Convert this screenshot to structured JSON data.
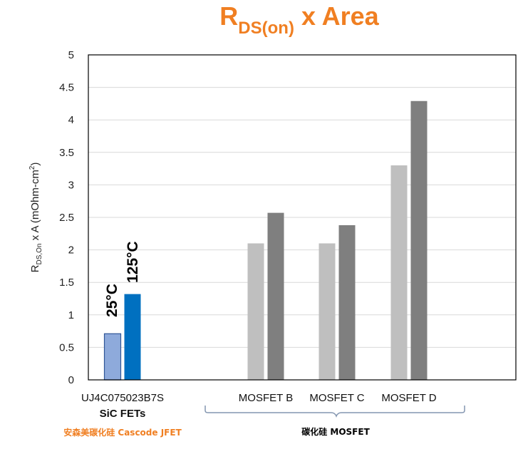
{
  "colors": {
    "title": "#f07f22",
    "sic_25": "#8eaadb",
    "sic_25_border": "#2f5597",
    "sic_125": "#0070c0",
    "mos_25": "#bfbfbf",
    "mos_125": "#7f7f7f",
    "annot_orange": "#f07f22",
    "grid": "#d9d9d9"
  },
  "chart_data": {
    "type": "bar",
    "title_main": "R",
    "title_sub": "DS(on)",
    "title_rest": " x Area",
    "ylabel_main": "R",
    "ylabel_sub": "DS,On",
    "ylabel_rest": " x A (mOhm-cm",
    "ylabel_sup": "2",
    "ylabel_end": ")",
    "ylim": [
      0,
      5
    ],
    "yticks": [
      "0",
      "0.5",
      "1",
      "1.5",
      "2",
      "2.5",
      "3",
      "3.5",
      "4",
      "4.5",
      "5"
    ],
    "grid": true,
    "categories": [
      "UJ4C075023B7S",
      "MOSFET B",
      "MOSFET C",
      "MOSFET D"
    ],
    "series": [
      {
        "values": [
          0.71,
          2.1,
          2.1,
          3.3
        ]
      },
      {
        "values": [
          1.32,
          2.57,
          2.38,
          4.29
        ]
      }
    ],
    "bar_labels": [
      "25°C",
      "125°C"
    ],
    "group_label_sic": "SiC FETs",
    "annotation_left": "安森美碳化硅 Cascode JFET",
    "annotation_right": "碳化硅 MOSFET"
  }
}
